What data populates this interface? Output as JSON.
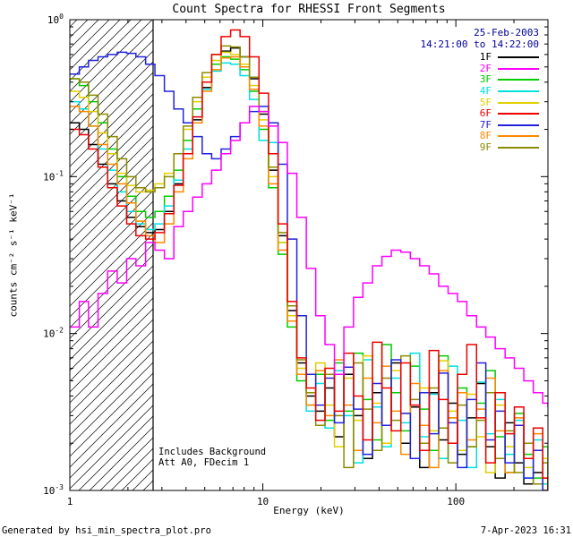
{
  "annotations": {
    "date": "25-Feb-2003",
    "time_range": "14:21:00 to 14:22:00",
    "note_line1": "Includes Background",
    "note_line2": "Att A0, FDecim 1"
  },
  "footer": {
    "left": "Generated by hsi_min_spectra_plot.pro",
    "right": "7-Apr-2023 16:31"
  },
  "colors": {
    "date_text": "#000099",
    "axis": "#000000",
    "background": "#ffffff"
  },
  "chart_data": {
    "type": "line",
    "mode": "histogram-step",
    "title": "Count Spectra for RHESSI Front Segments",
    "xlabel": "Energy (keV)",
    "ylabel": "counts cm⁻² s⁻¹ keV⁻¹",
    "xscale": "log",
    "yscale": "log",
    "xlim": [
      1,
      300
    ],
    "ylim": [
      0.001,
      1
    ],
    "x_ticks": [
      1,
      10,
      100
    ],
    "y_tick_exponents": [
      0,
      -1,
      -2,
      -3
    ],
    "grid": false,
    "legend_position": "top-right",
    "hatch_region": {
      "xmin": 1.0,
      "xmax": 2.7,
      "style": "diagonal-hatch"
    },
    "x": [
      1.0,
      1.12,
      1.25,
      1.4,
      1.57,
      1.76,
      1.97,
      2.2,
      2.47,
      2.76,
      3.09,
      3.46,
      3.87,
      4.33,
      4.85,
      5.43,
      6.08,
      6.81,
      7.62,
      8.53,
      9.55,
      10.7,
      12.0,
      13.4,
      15.0,
      16.8,
      18.8,
      21.0,
      23.5,
      26.3,
      29.5,
      33.0,
      37.0,
      41.4,
      46.3,
      51.9,
      58.1,
      65.0,
      72.8,
      81.5,
      91.2,
      102,
      114,
      128,
      143,
      160,
      180,
      201,
      225,
      252,
      282,
      300
    ],
    "series": [
      {
        "name": "1F",
        "color": "#000000",
        "values": [
          0.22,
          0.2,
          0.16,
          0.12,
          0.09,
          0.07,
          0.055,
          0.048,
          0.044,
          0.046,
          0.06,
          0.09,
          0.14,
          0.23,
          0.37,
          0.52,
          0.63,
          0.66,
          0.58,
          0.42,
          0.25,
          0.11,
          0.042,
          0.014,
          0.0065,
          0.004,
          0.0032,
          0.0045,
          0.0022,
          0.0055,
          0.003,
          0.0016,
          0.0042,
          0.0026,
          0.0065,
          0.002,
          0.0034,
          0.0014,
          0.0042,
          0.0021,
          0.0036,
          0.0017,
          0.0029,
          0.0048,
          0.0019,
          0.0012,
          0.0027,
          0.0015,
          0.0011,
          0.0013,
          0.001,
          0.001
        ]
      },
      {
        "name": "2F",
        "color": "#ff00ff",
        "values": [
          0.011,
          0.016,
          0.011,
          0.018,
          0.025,
          0.021,
          0.03,
          0.027,
          0.038,
          0.034,
          0.03,
          0.048,
          0.06,
          0.074,
          0.09,
          0.11,
          0.14,
          0.17,
          0.22,
          0.28,
          0.26,
          0.21,
          0.165,
          0.105,
          0.055,
          0.026,
          0.013,
          0.0085,
          0.0055,
          0.011,
          0.017,
          0.021,
          0.027,
          0.031,
          0.034,
          0.033,
          0.03,
          0.027,
          0.024,
          0.02,
          0.018,
          0.016,
          0.013,
          0.011,
          0.0095,
          0.008,
          0.007,
          0.006,
          0.005,
          0.0042,
          0.0036,
          0.0034
        ]
      },
      {
        "name": "3F",
        "color": "#00cc00",
        "values": [
          0.42,
          0.38,
          0.3,
          0.22,
          0.15,
          0.1,
          0.075,
          0.06,
          0.055,
          0.06,
          0.075,
          0.11,
          0.17,
          0.27,
          0.4,
          0.52,
          0.58,
          0.56,
          0.48,
          0.35,
          0.2,
          0.085,
          0.032,
          0.011,
          0.005,
          0.0035,
          0.0055,
          0.0028,
          0.0065,
          0.0032,
          0.0075,
          0.0038,
          0.0021,
          0.0085,
          0.0042,
          0.0024,
          0.0062,
          0.0033,
          0.0018,
          0.0072,
          0.0029,
          0.0045,
          0.0019,
          0.0036,
          0.0058,
          0.0022,
          0.0013,
          0.0031,
          0.0017,
          0.0012,
          0.0019,
          0.0012
        ]
      },
      {
        "name": "4F",
        "color": "#00e0e0",
        "values": [
          0.3,
          0.27,
          0.21,
          0.15,
          0.11,
          0.08,
          0.06,
          0.05,
          0.046,
          0.05,
          0.065,
          0.095,
          0.15,
          0.24,
          0.36,
          0.47,
          0.53,
          0.52,
          0.44,
          0.31,
          0.17,
          0.165,
          0.038,
          0.012,
          0.0055,
          0.0032,
          0.0048,
          0.0025,
          0.0058,
          0.003,
          0.0015,
          0.0068,
          0.0034,
          0.0019,
          0.0052,
          0.0027,
          0.0075,
          0.0022,
          0.0041,
          0.0016,
          0.0062,
          0.0028,
          0.0014,
          0.0049,
          0.0023,
          0.0038,
          0.0017,
          0.0028,
          0.0012,
          0.0021,
          0.0011,
          0.001
        ]
      },
      {
        "name": "5F",
        "color": "#e2cf00",
        "values": [
          0.35,
          0.32,
          0.26,
          0.19,
          0.14,
          0.105,
          0.088,
          0.08,
          0.082,
          0.09,
          0.105,
          0.14,
          0.2,
          0.3,
          0.43,
          0.55,
          0.62,
          0.6,
          0.52,
          0.38,
          0.23,
          0.1,
          0.038,
          0.013,
          0.006,
          0.0042,
          0.0065,
          0.0035,
          0.0019,
          0.0052,
          0.0028,
          0.0072,
          0.0036,
          0.002,
          0.0058,
          0.0031,
          0.0016,
          0.0045,
          0.0024,
          0.0067,
          0.0032,
          0.0018,
          0.0041,
          0.0022,
          0.0013,
          0.0035,
          0.0019,
          0.0026,
          0.0014,
          0.0011,
          0.0016,
          0.001
        ]
      },
      {
        "name": "6F",
        "color": "#ee0000",
        "values": [
          0.2,
          0.185,
          0.15,
          0.115,
          0.085,
          0.065,
          0.05,
          0.042,
          0.04,
          0.044,
          0.058,
          0.088,
          0.14,
          0.24,
          0.4,
          0.6,
          0.78,
          0.86,
          0.78,
          0.58,
          0.34,
          0.14,
          0.05,
          0.016,
          0.007,
          0.0045,
          0.0028,
          0.006,
          0.0032,
          0.0075,
          0.004,
          0.0021,
          0.0088,
          0.0045,
          0.0024,
          0.0065,
          0.0035,
          0.0018,
          0.0078,
          0.0038,
          0.002,
          0.0055,
          0.0085,
          0.0029,
          0.0015,
          0.0042,
          0.0023,
          0.0034,
          0.0016,
          0.0025,
          0.0012,
          0.001
        ]
      },
      {
        "name": "7F",
        "color": "#2222dd",
        "values": [
          0.45,
          0.5,
          0.55,
          0.58,
          0.6,
          0.62,
          0.61,
          0.58,
          0.52,
          0.44,
          0.35,
          0.27,
          0.22,
          0.18,
          0.14,
          0.13,
          0.15,
          0.18,
          0.22,
          0.26,
          0.28,
          0.22,
          0.12,
          0.04,
          0.013,
          0.0055,
          0.0035,
          0.0052,
          0.0027,
          0.0061,
          0.0033,
          0.0017,
          0.0048,
          0.0026,
          0.0068,
          0.0031,
          0.0016,
          0.0042,
          0.0023,
          0.0056,
          0.0027,
          0.0014,
          0.0038,
          0.0065,
          0.0021,
          0.0032,
          0.0015,
          0.0026,
          0.0012,
          0.0018,
          0.001,
          0.001
        ]
      },
      {
        "name": "8F",
        "color": "#ff8800",
        "values": [
          0.28,
          0.26,
          0.21,
          0.16,
          0.12,
          0.09,
          0.068,
          0.052,
          0.042,
          0.038,
          0.05,
          0.08,
          0.13,
          0.22,
          0.35,
          0.48,
          0.57,
          0.58,
          0.5,
          0.36,
          0.21,
          0.09,
          0.034,
          0.012,
          0.0055,
          0.0035,
          0.0058,
          0.003,
          0.0068,
          0.0035,
          0.0018,
          0.0052,
          0.0027,
          0.0062,
          0.0032,
          0.0017,
          0.0048,
          0.0026,
          0.0014,
          0.0058,
          0.0029,
          0.0042,
          0.0021,
          0.0033,
          0.0052,
          0.0024,
          0.0013,
          0.0029,
          0.0016,
          0.0023,
          0.0012,
          0.001
        ]
      },
      {
        "name": "9F",
        "color": "#8b8b00",
        "values": [
          0.42,
          0.4,
          0.33,
          0.25,
          0.18,
          0.13,
          0.1,
          0.085,
          0.08,
          0.085,
          0.1,
          0.14,
          0.21,
          0.32,
          0.46,
          0.6,
          0.68,
          0.67,
          0.58,
          0.43,
          0.26,
          0.115,
          0.044,
          0.015,
          0.0068,
          0.0042,
          0.0026,
          0.0055,
          0.003,
          0.0014,
          0.0065,
          0.0033,
          0.0018,
          0.0052,
          0.0028,
          0.0072,
          0.0038,
          0.002,
          0.0045,
          0.0025,
          0.0015,
          0.0035,
          0.0019,
          0.0028,
          0.0042,
          0.0016,
          0.0024,
          0.0013,
          0.002,
          0.0011,
          0.0015,
          0.001
        ]
      }
    ]
  }
}
